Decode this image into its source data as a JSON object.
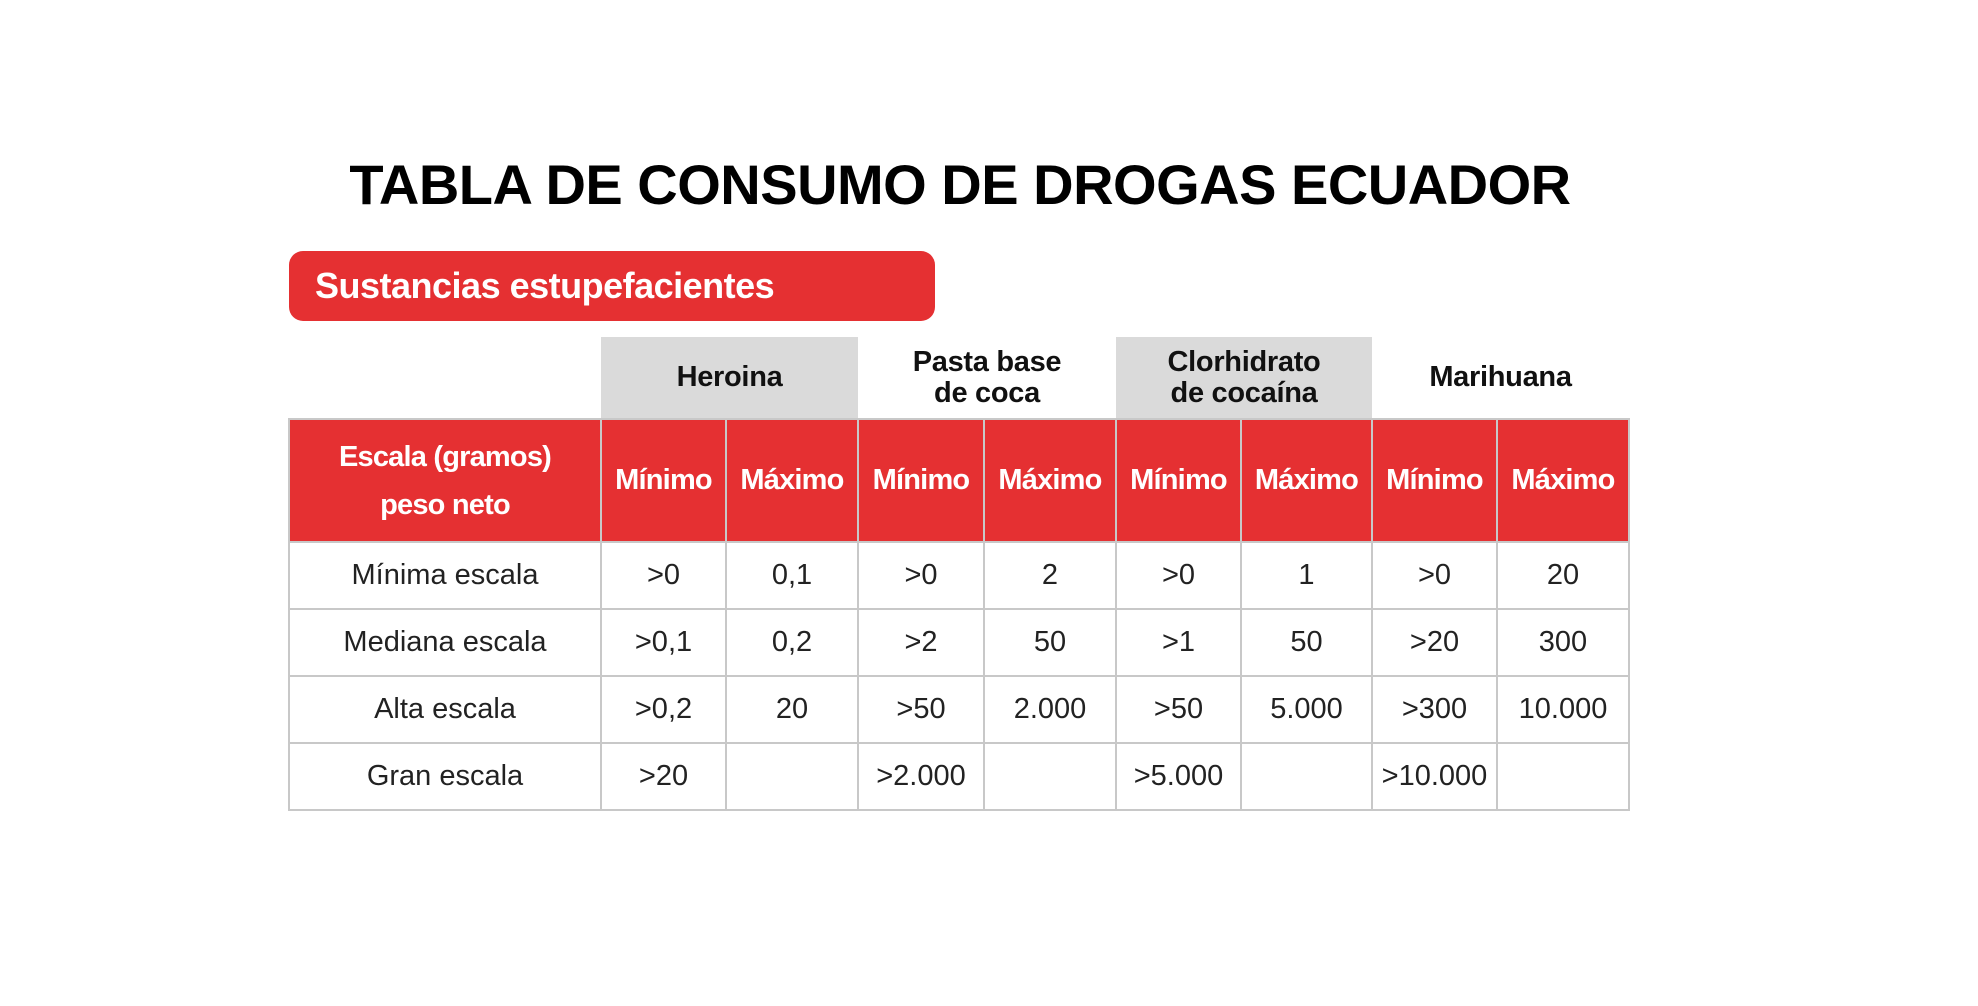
{
  "title": "TABLA DE CONSUMO DE DROGAS ECUADOR",
  "section_label": "Sustancias estupefacientes",
  "colors": {
    "accent_red": "#e53032",
    "header_gray": "#dadada"
  },
  "table": {
    "row_header_label_line1": "Escala (gramos)",
    "row_header_label_line2": "peso neto",
    "groups": [
      {
        "line1": "Heroina",
        "line2": "",
        "shaded": true
      },
      {
        "line1": "Pasta base",
        "line2": "de coca",
        "shaded": false
      },
      {
        "line1": "Clorhidrato",
        "line2": "de cocaína",
        "shaded": true
      },
      {
        "line1": "Marihuana",
        "line2": "",
        "shaded": false
      }
    ],
    "sub_headers": [
      "Mínimo",
      "Máximo",
      "Mínimo",
      "Máximo",
      "Mínimo",
      "Máximo",
      "Mínimo",
      "Máximo"
    ],
    "rows": [
      {
        "label": "Mínima escala",
        "cells": [
          ">0",
          "0,1",
          ">0",
          "2",
          ">0",
          "1",
          ">0",
          "20"
        ]
      },
      {
        "label": "Mediana escala",
        "cells": [
          ">0,1",
          "0,2",
          ">2",
          "50",
          ">1",
          "50",
          ">20",
          "300"
        ]
      },
      {
        "label": "Alta escala",
        "cells": [
          ">0,2",
          "20",
          ">50",
          "2.000",
          ">50",
          "5.000",
          ">300",
          "10.000"
        ]
      },
      {
        "label": "Gran escala",
        "cells": [
          ">20",
          "",
          ">2.000",
          "",
          ">5.000",
          "",
          ">10.000",
          ""
        ]
      }
    ]
  }
}
